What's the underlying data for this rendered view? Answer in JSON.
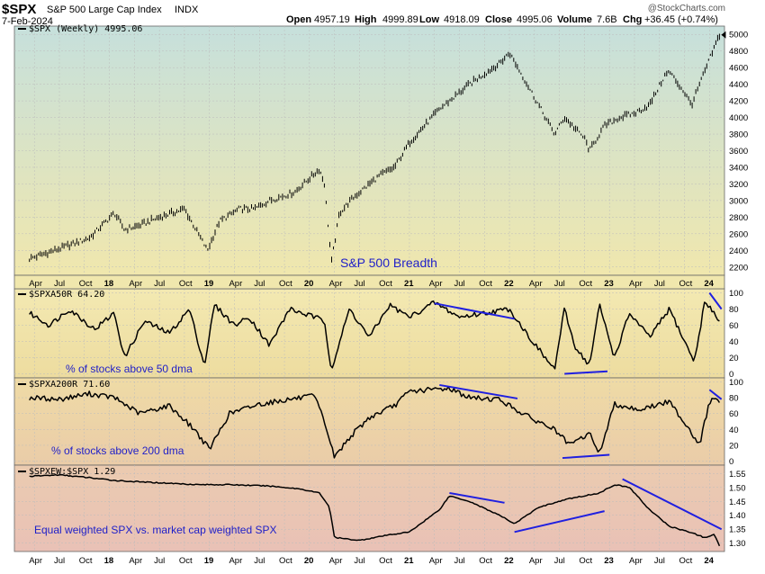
{
  "header": {
    "symbol": "$SPX",
    "name": "S&P 500 Large Cap Index",
    "exchange": "INDX",
    "date": "7-Feb-2024",
    "watermark": "@StockCharts.com",
    "ohlc": {
      "open_label": "Open",
      "open": "4957.19",
      "high_label": "High",
      "high": "4999.89",
      "low_label": "Low",
      "low": "4918.09",
      "close_label": "Close",
      "close": "4995.06",
      "volume_label": "Volume",
      "volume": "7.6B",
      "chg_label": "Chg",
      "chg": "+36.45 (+0.74%)"
    }
  },
  "colors": {
    "price": "#000000",
    "annotation": "#1f1fe0",
    "text": "#1f1fc8",
    "grid": "#bcbcbc"
  },
  "chart_data": [
    {
      "type": "line",
      "label": "$SPX (Weekly) 4995.06",
      "annotation": "S&P 500 Breadth",
      "ylim": [
        2100,
        5100
      ],
      "yticks": [
        2200,
        2400,
        2600,
        2800,
        3000,
        3200,
        3400,
        3600,
        3800,
        4000,
        4200,
        4400,
        4600,
        4800,
        5000
      ],
      "x": [
        2017.2,
        2017.5,
        2017.8,
        2018.05,
        2018.15,
        2018.3,
        2018.5,
        2018.75,
        2018.98,
        2019.1,
        2019.3,
        2019.45,
        2019.6,
        2019.85,
        2020.1,
        2020.15,
        2020.22,
        2020.3,
        2020.45,
        2020.7,
        2020.85,
        2021.0,
        2021.3,
        2021.6,
        2021.9,
        2022.0,
        2022.2,
        2022.45,
        2022.55,
        2022.75,
        2022.8,
        2022.95,
        2023.1,
        2023.25,
        2023.4,
        2023.55,
        2023.6,
        2023.75,
        2023.82,
        2024.0,
        2024.1
      ],
      "values": [
        2300,
        2420,
        2550,
        2850,
        2650,
        2700,
        2800,
        2900,
        2400,
        2750,
        2900,
        2900,
        3000,
        3100,
        3380,
        3200,
        2250,
        2850,
        3050,
        3300,
        3400,
        3700,
        4100,
        4400,
        4650,
        4780,
        4350,
        3800,
        4000,
        3750,
        3600,
        3900,
        4000,
        4050,
        4150,
        4500,
        4550,
        4300,
        4150,
        4700,
        4995
      ]
    },
    {
      "type": "line",
      "label": "$SPXA50R 64.20",
      "annotation": "% of stocks above 50 dma",
      "ylim": [
        -5,
        105
      ],
      "yticks": [
        0,
        20,
        40,
        60,
        80,
        100
      ],
      "x": [
        2017.2,
        2017.4,
        2017.6,
        2017.85,
        2018.05,
        2018.15,
        2018.35,
        2018.6,
        2018.8,
        2018.95,
        2019.05,
        2019.25,
        2019.4,
        2019.6,
        2019.8,
        2020.05,
        2020.15,
        2020.22,
        2020.4,
        2020.6,
        2020.8,
        2021.0,
        2021.25,
        2021.5,
        2021.75,
        2022.0,
        2022.2,
        2022.45,
        2022.55,
        2022.65,
        2022.8,
        2022.9,
        2023.05,
        2023.2,
        2023.4,
        2023.6,
        2023.75,
        2023.85,
        2023.95,
        2024.05,
        2024.1
      ],
      "values": [
        75,
        60,
        80,
        55,
        75,
        20,
        65,
        50,
        80,
        10,
        85,
        60,
        70,
        35,
        80,
        70,
        65,
        5,
        80,
        45,
        85,
        70,
        88,
        70,
        75,
        80,
        45,
        5,
        80,
        35,
        10,
        85,
        20,
        75,
        45,
        80,
        40,
        15,
        88,
        75,
        64.2
      ]
    },
    {
      "type": "line",
      "label": "$SPXA200R 71.60",
      "annotation": "% of stocks above 200 dma",
      "ylim": [
        -5,
        105
      ],
      "yticks": [
        0,
        20,
        40,
        60,
        80,
        100
      ],
      "x": [
        2017.2,
        2017.5,
        2017.8,
        2018.05,
        2018.3,
        2018.6,
        2018.85,
        2019.0,
        2019.2,
        2019.5,
        2019.8,
        2020.05,
        2020.15,
        2020.25,
        2020.4,
        2020.6,
        2020.85,
        2021.0,
        2021.4,
        2021.6,
        2021.9,
        2022.0,
        2022.2,
        2022.45,
        2022.6,
        2022.8,
        2022.9,
        2023.05,
        2023.3,
        2023.6,
        2023.8,
        2023.9,
        2024.0,
        2024.05,
        2024.1
      ],
      "values": [
        80,
        78,
        85,
        80,
        60,
        70,
        40,
        15,
        60,
        72,
        78,
        82,
        50,
        5,
        30,
        55,
        70,
        88,
        92,
        80,
        78,
        70,
        55,
        40,
        20,
        35,
        10,
        72,
        65,
        75,
        40,
        20,
        75,
        80,
        71.6
      ]
    },
    {
      "type": "line",
      "label": "$SPXEW:$SPX 1.29",
      "annotation": "Equal weighted SPX vs. market cap weighted SPX",
      "ylim": [
        1.27,
        1.58
      ],
      "yticks": [
        1.3,
        1.35,
        1.4,
        1.45,
        1.5,
        1.55
      ],
      "x": [
        2017.2,
        2017.5,
        2017.8,
        2018.05,
        2018.3,
        2018.6,
        2018.9,
        2019.2,
        2019.6,
        2019.9,
        2020.1,
        2020.2,
        2020.25,
        2020.5,
        2020.8,
        2021.0,
        2021.3,
        2021.4,
        2021.6,
        2021.9,
        2022.05,
        2022.3,
        2022.6,
        2022.9,
        2023.05,
        2023.2,
        2023.4,
        2023.6,
        2023.8,
        2023.95,
        2024.05,
        2024.1
      ],
      "values": [
        1.54,
        1.545,
        1.535,
        1.525,
        1.52,
        1.515,
        1.51,
        1.51,
        1.505,
        1.495,
        1.48,
        1.43,
        1.32,
        1.31,
        1.33,
        1.34,
        1.42,
        1.47,
        1.45,
        1.4,
        1.37,
        1.43,
        1.46,
        1.48,
        1.51,
        1.5,
        1.42,
        1.36,
        1.34,
        1.32,
        1.33,
        1.29
      ]
    }
  ],
  "x_axis": {
    "ticks": [
      {
        "x": 2017.25,
        "label": "Apr"
      },
      {
        "x": 2017.5,
        "label": "Jul"
      },
      {
        "x": 2017.75,
        "label": "Oct"
      },
      {
        "x": 2018.0,
        "label": "18"
      },
      {
        "x": 2018.25,
        "label": "Apr"
      },
      {
        "x": 2018.5,
        "label": "Jul"
      },
      {
        "x": 2018.75,
        "label": "Oct"
      },
      {
        "x": 2019.0,
        "label": "19"
      },
      {
        "x": 2019.25,
        "label": "Apr"
      },
      {
        "x": 2019.5,
        "label": "Jul"
      },
      {
        "x": 2019.75,
        "label": "Oct"
      },
      {
        "x": 2020.0,
        "label": "20"
      },
      {
        "x": 2020.25,
        "label": "Apr"
      },
      {
        "x": 2020.5,
        "label": "Jul"
      },
      {
        "x": 2020.75,
        "label": "Oct"
      },
      {
        "x": 2021.0,
        "label": "21"
      },
      {
        "x": 2021.25,
        "label": "Apr"
      },
      {
        "x": 2021.5,
        "label": "Jul"
      },
      {
        "x": 2021.75,
        "label": "Oct"
      },
      {
        "x": 2022.0,
        "label": "22"
      },
      {
        "x": 2022.25,
        "label": "Apr"
      },
      {
        "x": 2022.5,
        "label": "Jul"
      },
      {
        "x": 2022.75,
        "label": "Oct"
      },
      {
        "x": 2023.0,
        "label": "23"
      },
      {
        "x": 2023.25,
        "label": "Apr"
      },
      {
        "x": 2023.5,
        "label": "Jul"
      },
      {
        "x": 2023.75,
        "label": "Oct"
      },
      {
        "x": 2024.0,
        "label": "24"
      }
    ]
  },
  "trendlines": [
    {
      "panel": 1,
      "x1": 2021.25,
      "y1": 87,
      "x2": 2022.05,
      "y2": 68
    },
    {
      "panel": 1,
      "x1": 2022.55,
      "y1": 0,
      "x2": 2022.98,
      "y2": 3
    },
    {
      "panel": 1,
      "x1": 2024.0,
      "y1": 100,
      "x2": 2024.12,
      "y2": 80
    },
    {
      "panel": 2,
      "x1": 2021.3,
      "y1": 96,
      "x2": 2022.08,
      "y2": 79
    },
    {
      "panel": 2,
      "x1": 2022.53,
      "y1": 4,
      "x2": 2023.0,
      "y2": 8
    },
    {
      "panel": 2,
      "x1": 2024.0,
      "y1": 90,
      "x2": 2024.12,
      "y2": 78
    },
    {
      "panel": 3,
      "x1": 2021.4,
      "y1": 1.48,
      "x2": 2021.95,
      "y2": 1.445
    },
    {
      "panel": 3,
      "x1": 2022.05,
      "y1": 1.34,
      "x2": 2022.95,
      "y2": 1.415
    },
    {
      "panel": 3,
      "x1": 2023.13,
      "y1": 1.53,
      "x2": 2024.12,
      "y2": 1.35
    }
  ]
}
